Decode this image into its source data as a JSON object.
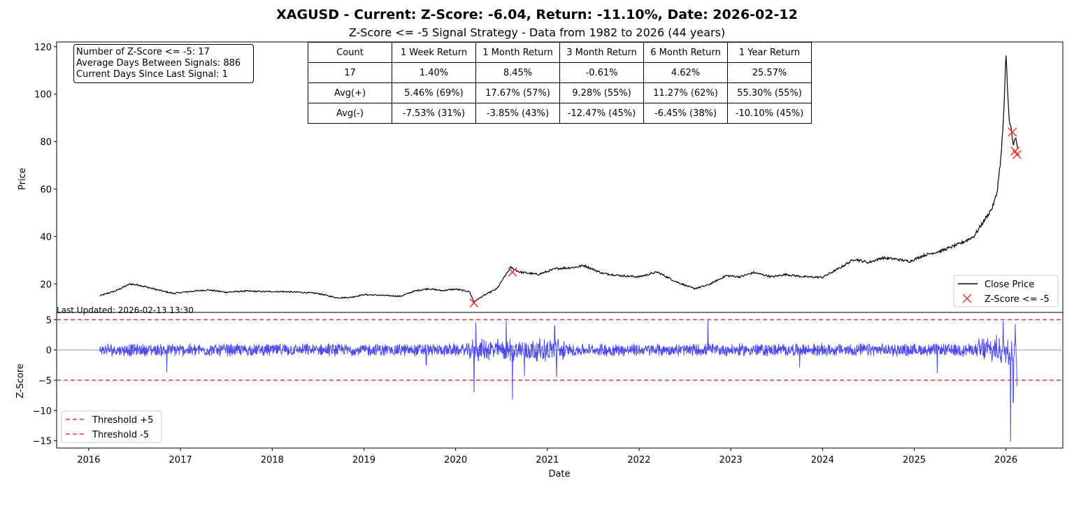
{
  "header": {
    "title": "XAGUSD - Current: Z-Score: -6.04, Return: -11.10%, Date: 2026-02-12",
    "subtitle": "Z-Score <= -5 Signal Strategy - Data from 1982 to 2026 (44 years)"
  },
  "stats_box": {
    "line1": "Number of Z-Score <= -5: 17",
    "line2": "Average Days Between Signals: 886",
    "line3": "Current Days Since Last Signal: 1"
  },
  "table": {
    "headers": [
      "Count",
      "1 Week Return",
      "1 Month Return",
      "3 Month Return",
      "6 Month Return",
      "1 Year Return"
    ],
    "rows": [
      [
        "17",
        "1.40%",
        "8.45%",
        "-0.61%",
        "4.62%",
        "25.57%"
      ],
      [
        "Avg(+)",
        "5.46% (69%)",
        "17.67% (57%)",
        "9.28% (55%)",
        "11.27% (62%)",
        "55.30% (55%)"
      ],
      [
        "Avg(-)",
        "-7.53% (31%)",
        "-3.85% (43%)",
        "-12.47% (45%)",
        "-6.45% (38%)",
        "-10.10% (45%)"
      ]
    ]
  },
  "footer": {
    "last_updated": "Last Updated: 2026-02-13 13:30"
  },
  "colors": {
    "price_line": "#000000",
    "zscore_line": "#4a4af0",
    "threshold": "#ee3333",
    "marker": "#ee3333",
    "zero_line": "#bbbbbb"
  },
  "chart_data": [
    {
      "type": "line",
      "name": "price",
      "ylabel": "Price",
      "xlabel": "",
      "ylim": [
        8,
        122
      ],
      "xlim": [
        2015.65,
        2026.62
      ],
      "yticks": [
        20,
        40,
        60,
        80,
        100,
        120
      ],
      "grid": false,
      "legend_position": "lower-right",
      "series": [
        {
          "name": "Close Price",
          "x": [
            2016.12,
            2016.3,
            2016.45,
            2016.55,
            2016.75,
            2016.92,
            2017.1,
            2017.3,
            2017.5,
            2017.7,
            2017.9,
            2018.1,
            2018.3,
            2018.5,
            2018.7,
            2018.85,
            2019.0,
            2019.2,
            2019.4,
            2019.55,
            2019.7,
            2019.85,
            2020.0,
            2020.15,
            2020.2,
            2020.3,
            2020.45,
            2020.55,
            2020.6,
            2020.7,
            2020.9,
            2021.1,
            2021.3,
            2021.4,
            2021.6,
            2021.8,
            2022.0,
            2022.2,
            2022.4,
            2022.6,
            2022.75,
            2022.95,
            2023.1,
            2023.25,
            2023.45,
            2023.6,
            2023.8,
            2024.0,
            2024.2,
            2024.35,
            2024.5,
            2024.65,
            2024.8,
            2024.95,
            2025.1,
            2025.3,
            2025.5,
            2025.65,
            2025.75,
            2025.85,
            2025.9,
            2025.95,
            2025.98,
            2026.0,
            2026.03,
            2026.06,
            2026.08,
            2026.1,
            2026.13
          ],
          "values": [
            15.0,
            17.2,
            20.0,
            19.5,
            17.5,
            16.0,
            16.8,
            17.5,
            16.5,
            17.0,
            16.8,
            16.8,
            16.5,
            16.0,
            14.2,
            14.3,
            15.5,
            15.2,
            14.8,
            17.0,
            18.0,
            17.2,
            17.8,
            16.8,
            12.5,
            15.0,
            18.0,
            24.0,
            27.0,
            25.0,
            24.0,
            26.5,
            27.0,
            27.8,
            24.5,
            23.5,
            23.0,
            25.0,
            21.0,
            18.0,
            19.5,
            23.5,
            23.0,
            24.8,
            23.0,
            24.0,
            23.0,
            22.8,
            27.0,
            30.5,
            29.0,
            31.0,
            30.5,
            29.5,
            32.0,
            34.0,
            37.0,
            40.0,
            46.0,
            52.0,
            58.0,
            75.0,
            95.0,
            116.5,
            92.0,
            84.0,
            78.0,
            82.0,
            76.0
          ]
        }
      ],
      "markers": {
        "name": "Z-Score <= -5",
        "x": [
          2020.2,
          2020.62,
          2026.07,
          2026.1,
          2026.12
        ],
        "values": [
          12.0,
          25.0,
          84.0,
          76.0,
          74.5
        ]
      },
      "legend": [
        "Close Price",
        "Z-Score <= -5"
      ]
    },
    {
      "type": "line",
      "name": "zscore",
      "ylabel": "Z-Score",
      "xlabel": "Date",
      "ylim": [
        -16.2,
        6.2
      ],
      "xlim": [
        2015.65,
        2026.62
      ],
      "yticks": [
        -15,
        -10,
        -5,
        0,
        5
      ],
      "xticks": [
        "2016",
        "2017",
        "2018",
        "2019",
        "2020",
        "2021",
        "2022",
        "2023",
        "2024",
        "2025",
        "2026"
      ],
      "grid": false,
      "legend_position": "lower-left",
      "thresholds": [
        5,
        -5
      ],
      "legend": [
        "Threshold +5",
        "Threshold -5"
      ],
      "series": [
        {
          "name": "Z-Score",
          "x_start": 2016.12,
          "x_end": 2026.12,
          "spikes": [
            {
              "x": 2016.85,
              "value": -3.7
            },
            {
              "x": 2019.68,
              "value": -2.5
            },
            {
              "x": 2020.2,
              "value": -7.0
            },
            {
              "x": 2020.22,
              "value": 4.5
            },
            {
              "x": 2020.55,
              "value": 4.8
            },
            {
              "x": 2020.62,
              "value": -8.2
            },
            {
              "x": 2020.75,
              "value": -4.3
            },
            {
              "x": 2021.08,
              "value": 4.0
            },
            {
              "x": 2021.1,
              "value": -4.5
            },
            {
              "x": 2022.75,
              "value": 5.0
            },
            {
              "x": 2023.75,
              "value": -2.9
            },
            {
              "x": 2025.25,
              "value": -3.8
            },
            {
              "x": 2025.97,
              "value": 4.8
            },
            {
              "x": 2026.05,
              "value": -15.2
            },
            {
              "x": 2026.08,
              "value": -8.7
            },
            {
              "x": 2026.1,
              "value": 4.3
            },
            {
              "x": 2026.12,
              "value": -6.0
            }
          ]
        }
      ]
    }
  ]
}
